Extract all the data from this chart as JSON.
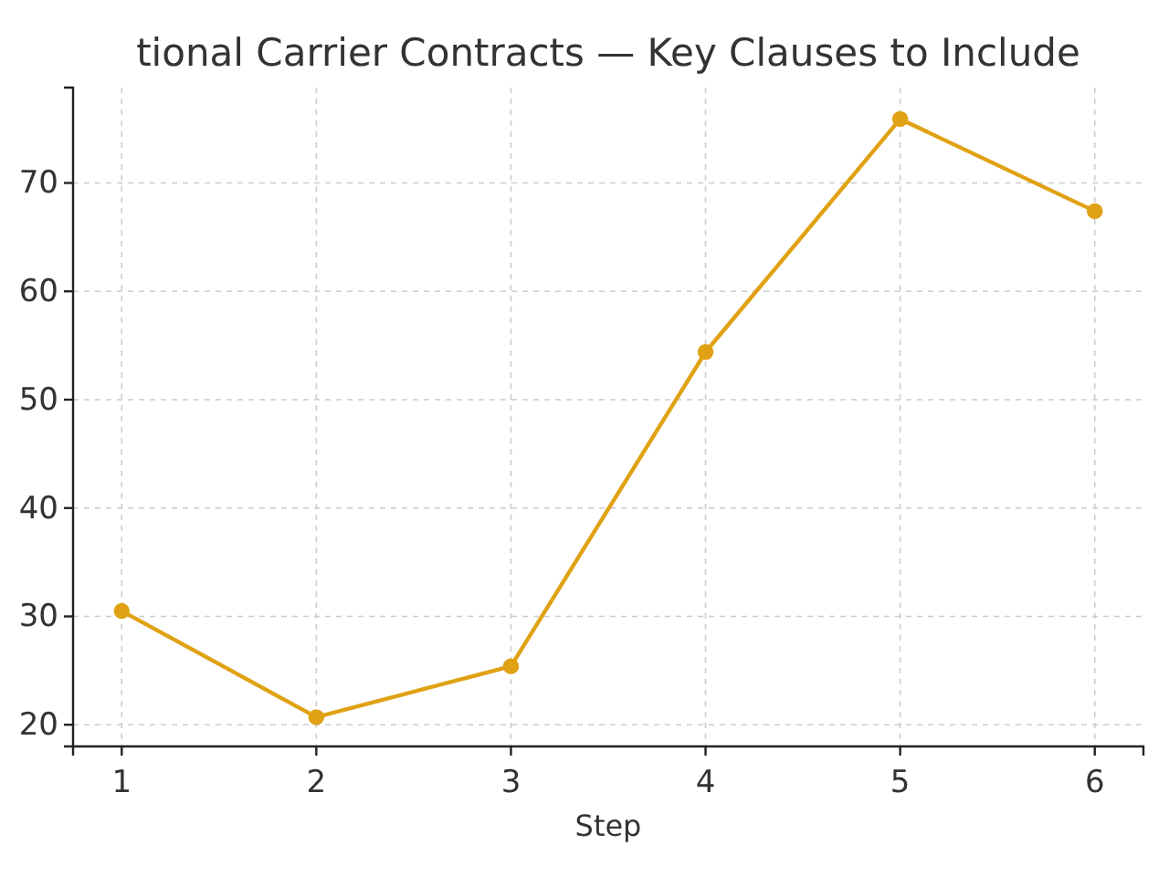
{
  "chart_data": {
    "type": "line",
    "title": "tional Carrier Contracts — Key Clauses to Include",
    "xlabel": "Step",
    "x": [
      1,
      2,
      3,
      4,
      5,
      6
    ],
    "series": [
      {
        "color": "#e0a214",
        "values": [
          30.5,
          20.7,
          25.4,
          54.4,
          75.9,
          67.4
        ]
      }
    ],
    "xlim": [
      0.75,
      6.25
    ],
    "xticks": [
      1,
      2,
      3,
      4,
      5,
      6
    ],
    "ylim": [
      18,
      78.8
    ],
    "yticks": [
      20,
      30,
      40,
      50,
      60,
      70
    ],
    "grid": true,
    "marker": "circle",
    "line_style": "solid"
  }
}
